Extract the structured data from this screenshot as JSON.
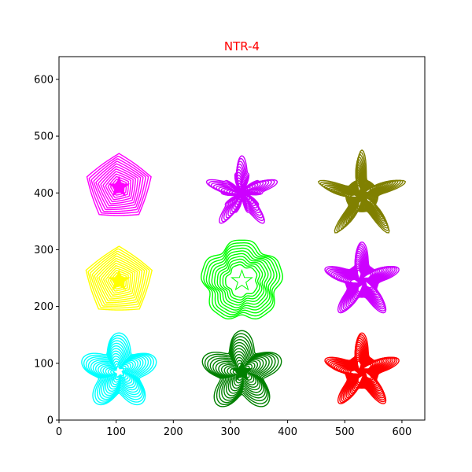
{
  "chart_data": {
    "type": "line",
    "title": "NTR-4",
    "title_color": "#ff0000",
    "xlabel": "",
    "ylabel": "",
    "xlim": [
      0,
      640
    ],
    "ylim": [
      0,
      640
    ],
    "xticks": [
      0,
      100,
      200,
      300,
      400,
      500,
      600
    ],
    "yticks": [
      0,
      100,
      200,
      300,
      400,
      500,
      600
    ],
    "grid": false,
    "shapes": [
      {
        "shape": "rounded-pentagon",
        "color": "#ff00ff",
        "center": [
          105,
          410
        ],
        "outer_radius": 72,
        "inner_radius": 2,
        "rings": 14
      },
      {
        "shape": "concave-star",
        "color": "#cc00ff",
        "center": [
          320,
          400
        ],
        "outer_radius": 65,
        "inner_radius": 3,
        "rings": 14
      },
      {
        "shape": "sharp-star",
        "color": "#808000",
        "center": [
          530,
          395
        ],
        "outer_radius": 80,
        "inner_radius": 20,
        "rings": 16
      },
      {
        "shape": "rounded-pentagon",
        "color": "#ffff00",
        "center": [
          105,
          245
        ],
        "outer_radius": 74,
        "inner_radius": 3,
        "rings": 15
      },
      {
        "shape": "wavy-ring",
        "color": "#00ff00",
        "center": [
          320,
          245
        ],
        "outer_radius": 75,
        "inner_radius": 30,
        "rings": 10
      },
      {
        "shape": "flower-star",
        "color": "#cc00ff",
        "center": [
          530,
          245
        ],
        "outer_radius": 68,
        "inner_radius": 20,
        "rings": 16
      },
      {
        "shape": "flower",
        "color": "#00ffff",
        "center": [
          105,
          85
        ],
        "outer_radius": 68,
        "inner_radius": 10,
        "rings": 14
      },
      {
        "shape": "flower",
        "color": "#008000",
        "center": [
          320,
          85
        ],
        "outer_radius": 72,
        "inner_radius": 5,
        "rings": 14
      },
      {
        "shape": "flower-star",
        "color": "#ff0000",
        "center": [
          530,
          85
        ],
        "outer_radius": 68,
        "inner_radius": 20,
        "rings": 16
      }
    ]
  }
}
